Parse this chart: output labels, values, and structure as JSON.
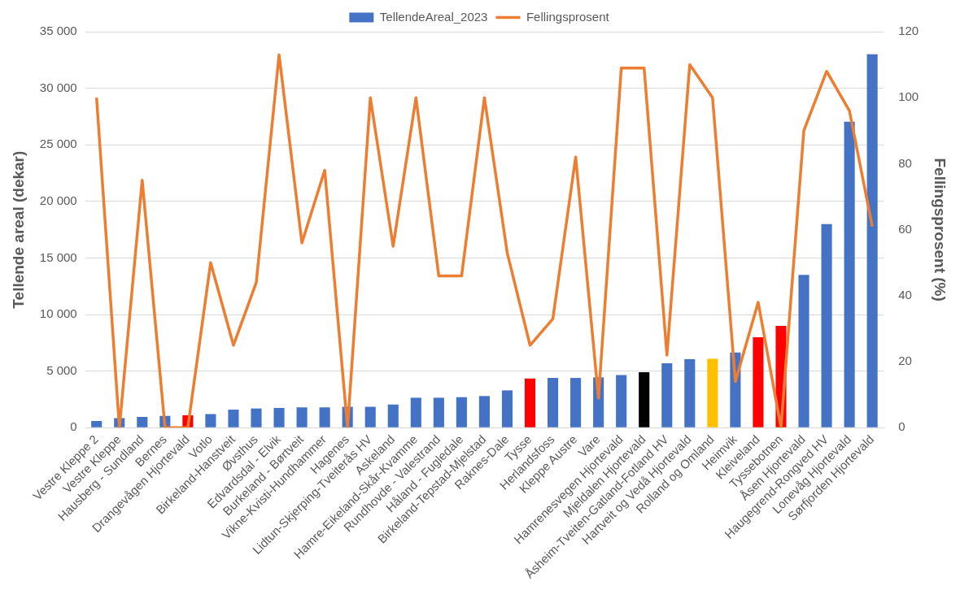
{
  "chart_data": {
    "type": "bar",
    "xlabel": null,
    "ylabel": "Tellende areal (dekar)",
    "y2label": "Fellingsprosent (%)",
    "categories": [
      "Vestre Kleppe 2",
      "Vestre Kleppe",
      "Hausberg - Sundland",
      "Bernes",
      "Drangevågen Hjortevald",
      "Votlo",
      "Birkeland-Hanstveit",
      "Øvsthus",
      "Edvardsdal - Elvik",
      "Burkeland - Børtveit",
      "Vikne-Kvisti-Hundhammer",
      "Hagenes",
      "Lidtun-Skjerping-Tveiterås HV",
      "Askeland",
      "Hamre-Eikeland-Skår-Kvamme",
      "Rundhovde - Valestrand",
      "Håland - Fugledale",
      "Birkeland-Tepstad-Mjelstad",
      "Raknes-Dale",
      "Tysse",
      "Herlandsfoss",
      "Kleppe Austre",
      "Vare",
      "Hamrenesvegen Hjortevald",
      "Mjeldalen Hjortevald",
      "Åsheim-Tveiten-Gatland-Fotland HV",
      "Hartveit og Vedå Hjortevald",
      "Rolland og Omland",
      "Heimvik",
      "Kleiveland",
      "Tyssebotnen",
      "Åsen Hjortevald",
      "Haugegrend-Rongved HV",
      "Lonevåg Hjortevald",
      "Sørfjorden Hjortevald"
    ],
    "series": [
      {
        "name": "TellendeAreal_2023",
        "axis": "y",
        "color": "#4472c4",
        "colors": [
          "#4472c4",
          "#4472c4",
          "#4472c4",
          "#4472c4",
          "#ff0000",
          "#4472c4",
          "#4472c4",
          "#4472c4",
          "#4472c4",
          "#4472c4",
          "#4472c4",
          "#4472c4",
          "#4472c4",
          "#4472c4",
          "#4472c4",
          "#4472c4",
          "#4472c4",
          "#4472c4",
          "#4472c4",
          "#ff0000",
          "#4472c4",
          "#4472c4",
          "#4472c4",
          "#4472c4",
          "#000000",
          "#4472c4",
          "#4472c4",
          "#ffc000",
          "#4472c4",
          "#ff0000",
          "#ff0000",
          "#4472c4",
          "#4472c4",
          "#4472c4",
          "#4472c4"
        ],
        "values": [
          600,
          850,
          950,
          1050,
          1100,
          1200,
          1600,
          1700,
          1750,
          1800,
          1800,
          1850,
          1850,
          2050,
          2650,
          2650,
          2700,
          2800,
          3300,
          4350,
          4400,
          4400,
          4450,
          4650,
          4900,
          5700,
          6050,
          6100,
          6650,
          8000,
          9000,
          13500,
          18000,
          27050,
          33000
        ]
      },
      {
        "name": "Fellingsprosent",
        "type": "line",
        "axis": "y2",
        "color": "#ed7d31",
        "marker": "none",
        "values": [
          100,
          0,
          75,
          0,
          0,
          50,
          25,
          44,
          113,
          56,
          78,
          0,
          100,
          55,
          100,
          46,
          46,
          100,
          53,
          25,
          33,
          82,
          9,
          109,
          109,
          22,
          110,
          100,
          14,
          38,
          0,
          90,
          108,
          96,
          61
        ]
      }
    ],
    "ylim": [
      0,
      35000
    ],
    "yticks": [
      0,
      {
        "value": 5000,
        "label": "5 000"
      },
      {
        "value": 10000,
        "label": "10 000"
      },
      {
        "value": 15000,
        "label": "15 000"
      },
      {
        "value": 20000,
        "label": "20 000"
      },
      {
        "value": 25000,
        "label": "25 000"
      },
      {
        "value": 30000,
        "label": "30 000"
      },
      {
        "value": 35000,
        "label": "35 000"
      }
    ],
    "y2lim": [
      0,
      120
    ],
    "y2ticks": [
      0,
      20,
      40,
      60,
      80,
      100,
      120
    ],
    "grid": "y",
    "legend": "top"
  }
}
